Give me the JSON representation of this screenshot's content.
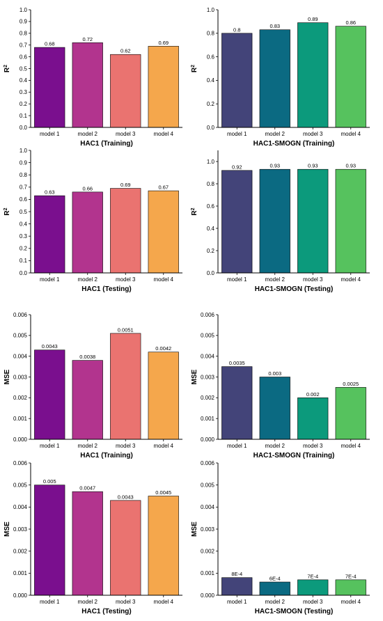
{
  "colors": {
    "left": [
      "#7a0f8e",
      "#b2348e",
      "#ea7370",
      "#f5a74c"
    ],
    "right": [
      "#434479",
      "#0b6a82",
      "#0c9a7c",
      "#56c25e"
    ],
    "axis": "#000000"
  },
  "chart_data": [
    {
      "type": "bar",
      "title": "HAC1 (Training)",
      "ylabel": "R2",
      "categories": [
        "model 1",
        "model 2",
        "model 3",
        "model 4"
      ],
      "values": [
        0.68,
        0.72,
        0.62,
        0.69
      ],
      "value_labels": [
        "0.68",
        "0.72",
        "0.62",
        "0.69"
      ],
      "ylim": [
        0,
        1.0
      ],
      "yticks": [
        "0.0",
        "0.1",
        "0.2",
        "0.3",
        "0.4",
        "0.5",
        "0.6",
        "0.7",
        "0.8",
        "0.9",
        "1.0"
      ],
      "palette": "left"
    },
    {
      "type": "bar",
      "title": "HAC1-SMOGN (Training)",
      "ylabel": "R2",
      "categories": [
        "model 1",
        "model 2",
        "model 3",
        "model 4"
      ],
      "values": [
        0.8,
        0.83,
        0.89,
        0.86
      ],
      "value_labels": [
        "0.8",
        "0.83",
        "0.89",
        "0.86"
      ],
      "ylim": [
        0,
        1.0
      ],
      "yticks": [
        "0.0",
        "0.2",
        "0.4",
        "0.6",
        "0.8",
        "1.0"
      ],
      "palette": "right"
    },
    {
      "type": "bar",
      "title": "HAC1 (Testing)",
      "ylabel": "R2",
      "categories": [
        "model 1",
        "model 2",
        "model 3",
        "model 4"
      ],
      "values": [
        0.63,
        0.66,
        0.69,
        0.67
      ],
      "value_labels": [
        "0.63",
        "0.66",
        "0.69",
        "0.67"
      ],
      "ylim": [
        0,
        1.0
      ],
      "yticks": [
        "0.0",
        "0.1",
        "0.2",
        "0.3",
        "0.4",
        "0.5",
        "0.6",
        "0.7",
        "0.8",
        "0.9",
        "1.0"
      ],
      "palette": "left"
    },
    {
      "type": "bar",
      "title": "HAC1-SMOGN (Testing)",
      "ylabel": "R2",
      "categories": [
        "model 1",
        "model 2",
        "model 3",
        "model 4"
      ],
      "values": [
        0.92,
        0.93,
        0.93,
        0.93
      ],
      "value_labels": [
        "0.92",
        "0.93",
        "0.93",
        "0.93"
      ],
      "ylim": [
        0,
        1.1
      ],
      "yticks": [
        "0.0",
        "0.2",
        "0.4",
        "0.6",
        "0.8",
        "1.0"
      ],
      "palette": "right"
    },
    {
      "type": "bar",
      "title": "HAC1 (Training)",
      "ylabel": "MSE",
      "categories": [
        "model 1",
        "model 2",
        "model 3",
        "model 4"
      ],
      "values": [
        0.0043,
        0.0038,
        0.0051,
        0.0042
      ],
      "value_labels": [
        "0.0043",
        "0.0038",
        "0.0051",
        "0.0042"
      ],
      "ylim": [
        0,
        0.006
      ],
      "yticks": [
        "0.000",
        "0.001",
        "0.002",
        "0.003",
        "0.004",
        "0.005",
        "0.006"
      ],
      "palette": "left"
    },
    {
      "type": "bar",
      "title": "HAC1-SMOGN (Training)",
      "ylabel": "MSE",
      "categories": [
        "model 1",
        "model 2",
        "model 3",
        "model 4"
      ],
      "values": [
        0.0035,
        0.003,
        0.002,
        0.0025
      ],
      "value_labels": [
        "0.0035",
        "0.003",
        "0.002",
        "0.0025"
      ],
      "ylim": [
        0,
        0.006
      ],
      "yticks": [
        "0.000",
        "0.001",
        "0.002",
        "0.003",
        "0.004",
        "0.005",
        "0.006"
      ],
      "palette": "right"
    },
    {
      "type": "bar",
      "title": "HAC1 (Testing)",
      "ylabel": "MSE",
      "categories": [
        "model 1",
        "model 2",
        "model 3",
        "model 4"
      ],
      "values": [
        0.005,
        0.0047,
        0.0043,
        0.0045
      ],
      "value_labels": [
        "0.005",
        "0.0047",
        "0.0043",
        "0.0045"
      ],
      "ylim": [
        0,
        0.006
      ],
      "yticks": [
        "0.000",
        "0.001",
        "0.002",
        "0.003",
        "0.004",
        "0.005",
        "0.006"
      ],
      "palette": "left"
    },
    {
      "type": "bar",
      "title": "HAC1-SMOGN (Testing)",
      "ylabel": "MSE",
      "categories": [
        "model 1",
        "model 2",
        "model 3",
        "model 4"
      ],
      "values": [
        0.0008,
        0.0006,
        0.0007,
        0.0007
      ],
      "value_labels": [
        "8E-4",
        "6E-4",
        "7E-4",
        "7E-4"
      ],
      "ylim": [
        0,
        0.006
      ],
      "yticks": [
        "0.000",
        "0.001",
        "0.002",
        "0.003",
        "0.004",
        "0.005",
        "0.006"
      ],
      "palette": "right"
    }
  ]
}
